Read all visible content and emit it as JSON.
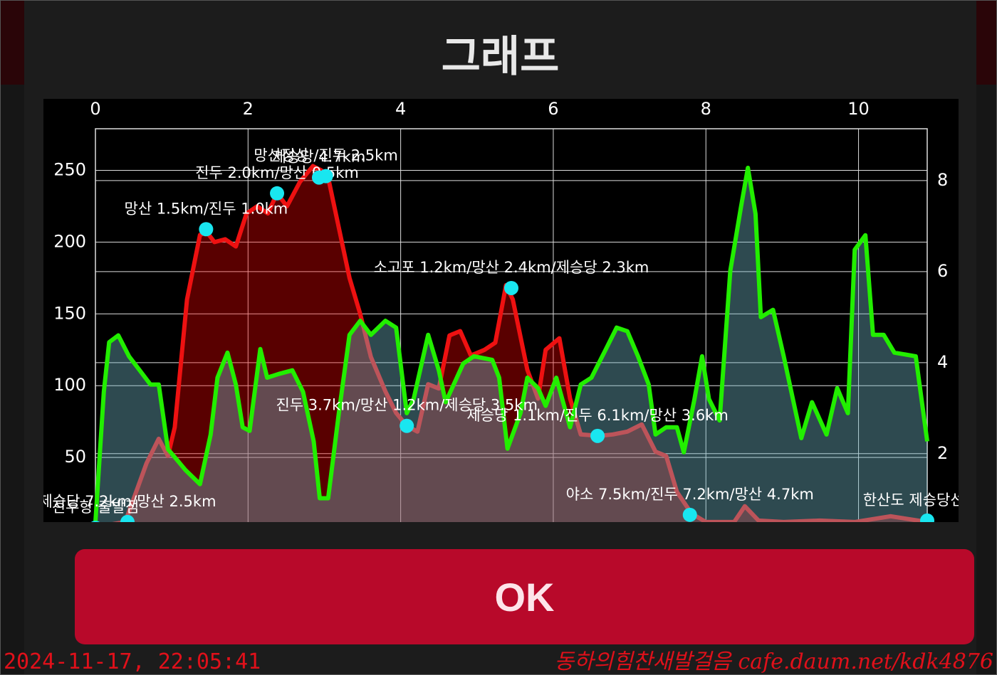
{
  "dialog": {
    "title": "그래프",
    "button": "OK"
  },
  "footer": {
    "timestamp": "2024-11-17, 22:05:41",
    "watermark": "동하의힘찬새발걸음 cafe.daum.net/kdk4876"
  },
  "chart_data": {
    "type": "line",
    "xlim": [
      0,
      10.9
    ],
    "xticks": [
      0,
      2,
      4,
      6,
      8,
      10
    ],
    "ylim": [
      0,
      279
    ],
    "yticks": [
      50,
      100,
      150,
      200,
      250
    ],
    "y2lim": [
      0.34,
      9.14
    ],
    "y2ticks": [
      2,
      4,
      6,
      8
    ],
    "grid": true,
    "series": [
      {
        "color": "#ee1111",
        "fill": "rgba(255,0,0,0.35)",
        "x": [
          0,
          0.39,
          0.67,
          0.83,
          0.95,
          1.04,
          1.2,
          1.37,
          1.46,
          1.56,
          1.7,
          1.84,
          1.98,
          2.12,
          2.26,
          2.38,
          2.51,
          2.68,
          2.85,
          2.96,
          3.05,
          3.19,
          3.33,
          3.47,
          3.61,
          3.8,
          3.94,
          4.08,
          4.22,
          4.36,
          4.5,
          4.64,
          4.78,
          4.92,
          5.1,
          5.24,
          5.38,
          5.47,
          5.66,
          5.8,
          5.9,
          6.08,
          6.22,
          6.36,
          6.6,
          6.78,
          6.97,
          7.16,
          7.34,
          7.48,
          7.62,
          7.81,
          8.0,
          8.37,
          8.51,
          8.69,
          9.02,
          9.49,
          9.95,
          10.42,
          10.9
        ],
        "values": [
          1.5,
          5,
          46,
          63,
          51,
          71,
          160,
          205,
          207,
          200,
          202,
          197,
          220,
          225,
          220,
          234,
          225,
          242,
          253,
          250,
          245,
          210,
          175,
          150,
          120,
          96,
          81,
          72,
          68,
          101,
          98,
          135,
          138,
          121,
          125,
          130,
          170,
          160,
          111,
          91,
          125,
          133,
          91,
          66,
          65,
          66,
          68,
          73,
          54,
          51,
          26,
          11,
          5,
          5,
          16,
          6,
          5,
          6,
          5,
          9,
          5
        ]
      },
      {
        "color": "#22ee00",
        "fill": "rgba(115,185,200,0.4)",
        "axis": "y2",
        "x": [
          0,
          0.11,
          0.18,
          0.3,
          0.44,
          0.58,
          0.72,
          0.83,
          0.95,
          1.18,
          1.37,
          1.51,
          1.6,
          1.73,
          1.84,
          1.93,
          2.02,
          2.16,
          2.25,
          2.4,
          2.58,
          2.72,
          2.86,
          2.94,
          3.05,
          3.19,
          3.33,
          3.47,
          3.61,
          3.8,
          3.94,
          4.08,
          4.17,
          4.36,
          4.5,
          4.59,
          4.82,
          4.96,
          5.2,
          5.29,
          5.4,
          5.57,
          5.66,
          5.8,
          5.9,
          6.04,
          6.22,
          6.36,
          6.5,
          6.69,
          6.83,
          6.97,
          7.11,
          7.25,
          7.34,
          7.48,
          7.62,
          7.71,
          7.85,
          7.95,
          8.04,
          8.18,
          8.32,
          8.46,
          8.55,
          8.65,
          8.72,
          8.88,
          9.02,
          9.25,
          9.39,
          9.58,
          9.72,
          9.86,
          9.95,
          10.09,
          10.19,
          10.33,
          10.47,
          10.75,
          10.9
        ],
        "values": [
          0.5,
          3.36,
          4.45,
          4.6,
          4.14,
          3.83,
          3.52,
          3.52,
          2.1,
          1.64,
          1.33,
          2.42,
          3.67,
          4.22,
          3.52,
          2.58,
          2.5,
          4.3,
          3.67,
          3.75,
          3.83,
          3.36,
          2.27,
          1.02,
          1.02,
          2.89,
          4.61,
          4.92,
          4.61,
          4.92,
          4.77,
          2.89,
          3.2,
          4.61,
          3.83,
          3.13,
          3.98,
          4.14,
          4.06,
          3.67,
          2.11,
          2.89,
          3.67,
          3.44,
          3.05,
          3.67,
          2.58,
          3.52,
          3.67,
          4.3,
          4.77,
          4.69,
          4.14,
          3.52,
          2.42,
          2.58,
          2.58,
          2.03,
          3.2,
          4.14,
          3.2,
          2.73,
          6.02,
          7.42,
          8.28,
          7.27,
          5.0,
          5.16,
          4.14,
          2.34,
          3.13,
          2.42,
          3.44,
          2.89,
          6.48,
          6.8,
          4.61,
          4.61,
          4.22,
          4.14,
          2.27
        ]
      }
    ],
    "markers": [
      {
        "x": 0,
        "y": 1,
        "label": "진두항 출발점"
      },
      {
        "x": 0.42,
        "y": 5,
        "label": "제승당 7.2km/망산 2.5km"
      },
      {
        "x": 1.45,
        "y": 209,
        "label": "망산 1.5km/진두 1.0km"
      },
      {
        "x": 2.38,
        "y": 234,
        "label": "진두 2.0km/망산 0.5km"
      },
      {
        "x": 2.93,
        "y": 245,
        "label": "제승당 4.7km"
      },
      {
        "x": 3.02,
        "y": 246,
        "label": "망산정상 /진두 2.5km"
      },
      {
        "x": 4.08,
        "y": 72,
        "label": "진두 3.7km/망산 1.2km/제승당 3.5km"
      },
      {
        "x": 5.45,
        "y": 168,
        "label": "소고포 1.2km/망산 2.4km/제승당 2.3km"
      },
      {
        "x": 6.58,
        "y": 65,
        "label": "제승당 1.1km/진두 6.1km/망산 3.6km"
      },
      {
        "x": 7.79,
        "y": 10,
        "label": "야소 7.5km/진두 7.2km/망산 4.7km"
      },
      {
        "x": 10.9,
        "y": 6,
        "label": "한산도 제승당선착장"
      }
    ]
  }
}
